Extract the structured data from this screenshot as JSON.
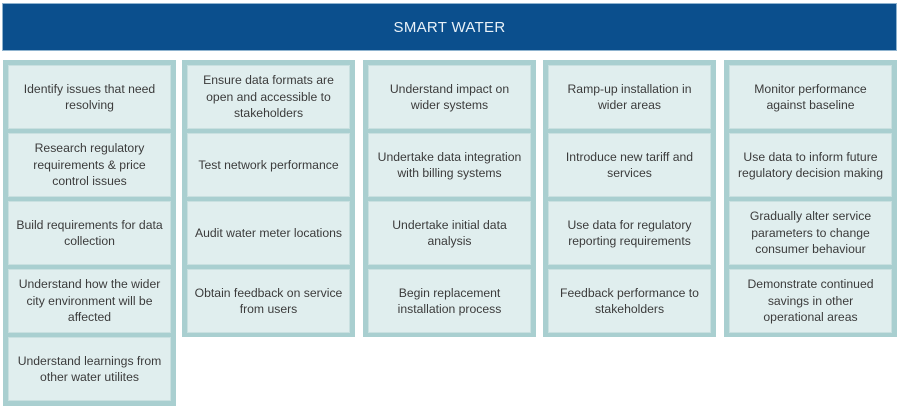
{
  "header": {
    "title": "SMART WATER"
  },
  "colors": {
    "header_bg": "#0b4f8d",
    "header_text": "#e8f1f8",
    "column_border": "#a9cfd0",
    "cell_bg": "#e0eeee",
    "cell_text": "#3b3b3b"
  },
  "columns": [
    {
      "items": [
        "Identify issues that need resolving",
        "Research regulatory requirements & price control issues",
        "Build requirements for data collection",
        "Understand how the wider city environment will be affected",
        "Understand learnings from other water utilites"
      ]
    },
    {
      "items": [
        "Ensure data formats are open and accessible to stakeholders",
        "Test network performance",
        "Audit water meter locations",
        "Obtain feedback on service from users"
      ]
    },
    {
      "items": [
        "Understand impact on wider systems",
        "Undertake data integration with billing systems",
        "Undertake initial data analysis",
        "Begin replacement installation process"
      ]
    },
    {
      "items": [
        "Ramp-up installation in wider areas",
        "Introduce new tariff and services",
        "Use data for regulatory reporting requirements",
        "Feedback performance  to stakeholders"
      ]
    },
    {
      "items": [
        "Monitor performance against baseline",
        "Use data to inform future regulatory decision making",
        "Gradually alter service parameters to change consumer behaviour",
        "Demonstrate continued savings in other operational areas"
      ]
    }
  ]
}
